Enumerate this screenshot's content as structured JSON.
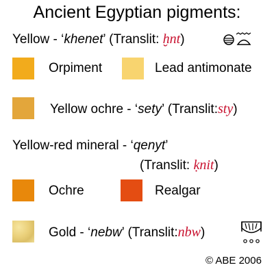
{
  "title": "Ancient Egyptian pigments:",
  "yellow": {
    "label": "Yellow - ‘",
    "name": "khenet",
    "mid": "’ (Translit: ",
    "translit": "ḫnt",
    "end": ")"
  },
  "items": {
    "orpiment": {
      "label": "Orpiment",
      "color": "#f2ab1c"
    },
    "lead_antimonate": {
      "label": "Lead antimonate",
      "color": "#f8d46f"
    },
    "yellow_ochre": {
      "label": "Yellow ochre - ‘",
      "name": "sety",
      "mid": "’ (Translit:",
      "translit": "sty",
      "end": ")",
      "color": "#e3a63b"
    },
    "ochre": {
      "label": "Ochre",
      "color": "#e8880b"
    },
    "realgar": {
      "label": "Realgar",
      "color": "#e44d12"
    },
    "gold": {
      "label": "Gold - ‘",
      "name": "nebw",
      "mid": "’ (Translit:",
      "translit": "nbw",
      "end": ")",
      "color": "#e9cf7a"
    }
  },
  "yellow_red": {
    "label": "Yellow-red mineral - ‘",
    "name": "qenyt",
    "end_quote": "’",
    "line2_a": "(Translit: ",
    "translit": "ḳnit",
    "line2_b": ")"
  },
  "copyright": "© ABE 2006"
}
